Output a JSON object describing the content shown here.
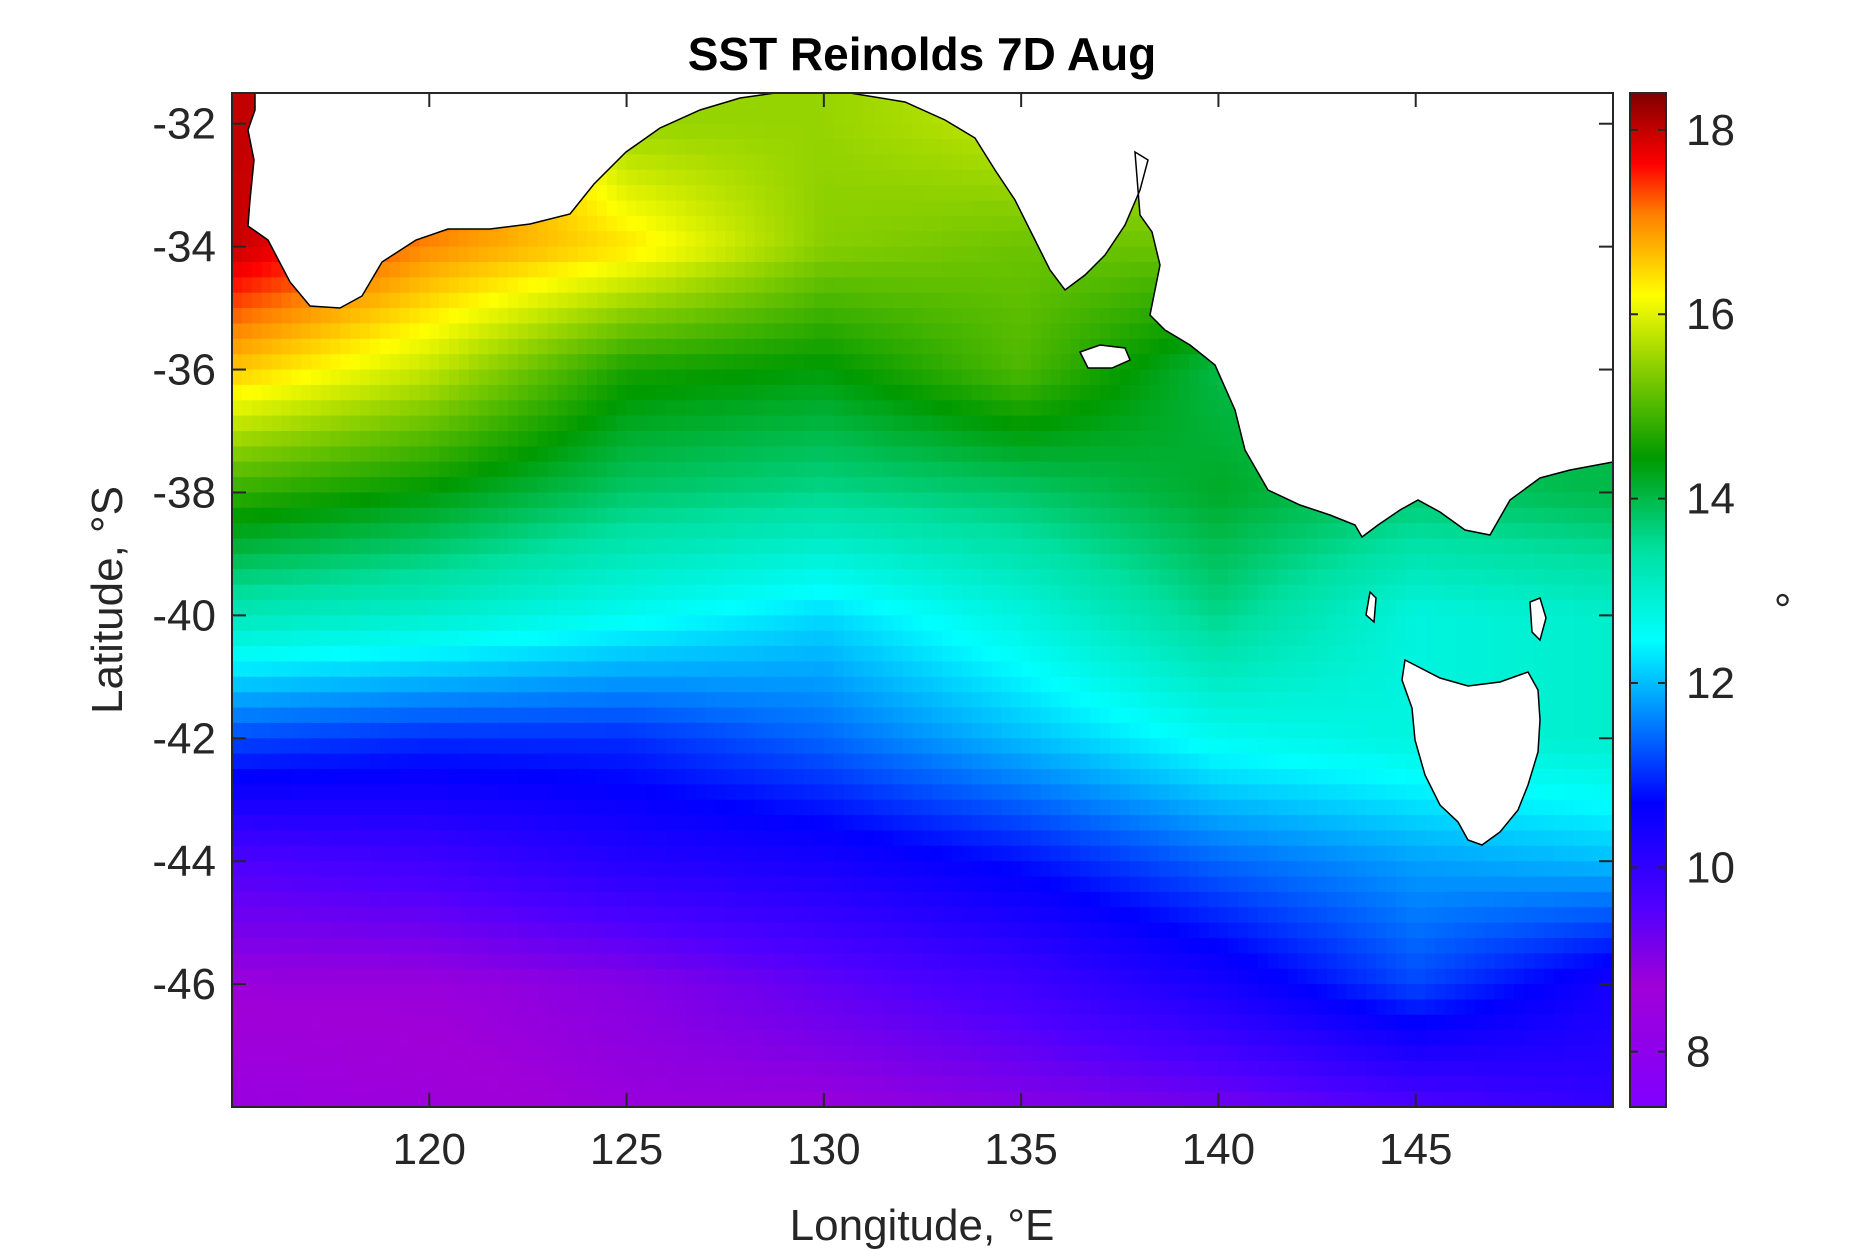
{
  "chart_data": {
    "type": "heatmap",
    "title": "SST Reinolds 7D Aug",
    "xlabel": "Longitude, °E",
    "ylabel": "Latitude, °S",
    "colorbar_label": "°",
    "xlim": [
      115,
      150
    ],
    "ylim": [
      -48,
      -31.5
    ],
    "x_ticks": [
      120,
      125,
      130,
      135,
      140,
      145
    ],
    "x_tick_labels": [
      "120",
      "125",
      "130",
      "135",
      "140",
      "145"
    ],
    "y_ticks": [
      -32,
      -34,
      -36,
      -38,
      -40,
      -42,
      -44,
      -46
    ],
    "y_tick_labels": [
      "-32",
      "-34",
      "-36",
      "-38",
      "-40",
      "-42",
      "-44",
      "-46"
    ],
    "colorbar_range": [
      7.4,
      18.4
    ],
    "colorbar_ticks": [
      8,
      10,
      12,
      14,
      16,
      18
    ],
    "colorbar_tick_labels": [
      "8",
      "10",
      "12",
      "14",
      "16",
      "18"
    ],
    "colormap": "rainbow (violet-blue-cyan-green-yellow-orange-red-darkred)",
    "grid": false,
    "lon_samples": [
      115,
      120,
      125,
      130,
      135,
      140,
      145,
      150
    ],
    "lat_samples": [
      -32,
      -34,
      -36,
      -38,
      -40,
      -42,
      -44,
      -46,
      -48
    ],
    "sst_values": [
      [
        18.0,
        null,
        null,
        15.5,
        15.8,
        null,
        null,
        null
      ],
      [
        18.0,
        17.0,
        16.4,
        15.4,
        15.2,
        null,
        null,
        null
      ],
      [
        16.6,
        15.8,
        14.6,
        14.4,
        15.0,
        14.0,
        null,
        null
      ],
      [
        14.8,
        14.4,
        13.8,
        13.6,
        13.8,
        14.2,
        13.8,
        14.0
      ],
      [
        13.2,
        13.0,
        12.6,
        12.2,
        12.8,
        13.6,
        12.8,
        13.0
      ],
      [
        11.2,
        11.0,
        11.0,
        11.4,
        12.0,
        12.6,
        null,
        13.0
      ],
      [
        9.6,
        9.8,
        10.2,
        10.4,
        10.8,
        11.4,
        11.8,
        12.0
      ],
      [
        8.8,
        8.8,
        9.0,
        9.4,
        9.8,
        10.4,
        11.2,
        10.4
      ],
      [
        8.4,
        8.6,
        8.8,
        8.8,
        9.0,
        9.2,
        9.6,
        10.0
      ]
    ]
  }
}
